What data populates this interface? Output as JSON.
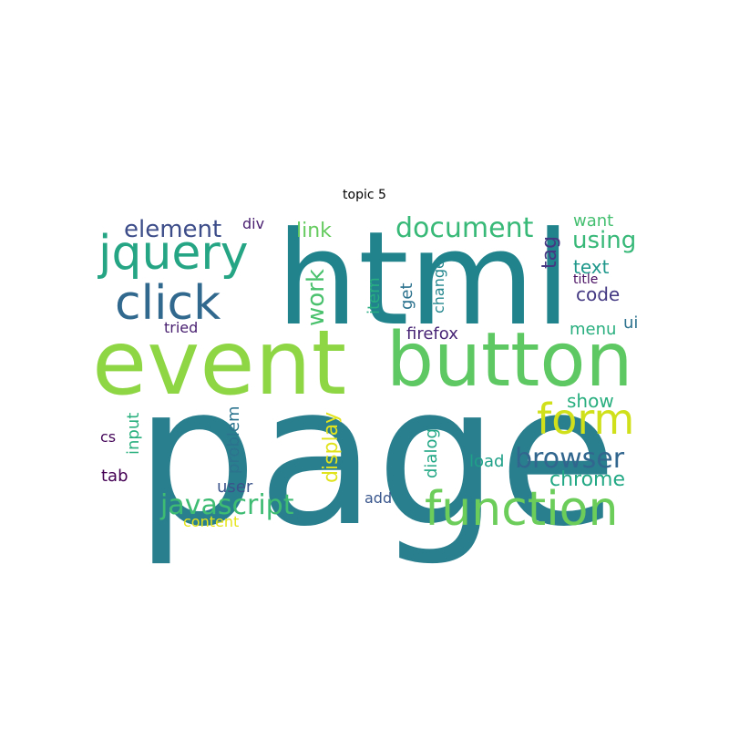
{
  "title": "topic 5",
  "words": [
    {
      "text": "page",
      "color": "#2a7f8e"
    },
    {
      "text": "html",
      "color": "#21848d"
    },
    {
      "text": "event",
      "color": "#8fd644"
    },
    {
      "text": "button",
      "color": "#5ec962"
    },
    {
      "text": "function",
      "color": "#6ccd5a"
    },
    {
      "text": "form",
      "color": "#d0e11c"
    },
    {
      "text": "jquery",
      "color": "#26a585"
    },
    {
      "text": "click",
      "color": "#31688e"
    },
    {
      "text": "javascript",
      "color": "#3fbc73"
    },
    {
      "text": "browser",
      "color": "#31668e"
    },
    {
      "text": "document",
      "color": "#38b977"
    },
    {
      "text": "element",
      "color": "#3d4d8a"
    },
    {
      "text": "using",
      "color": "#37b878"
    },
    {
      "text": "chrome",
      "color": "#22a884"
    },
    {
      "text": "work",
      "color": "#4ac16d"
    },
    {
      "text": "display",
      "color": "#e1e31d"
    },
    {
      "text": "code",
      "color": "#443983"
    },
    {
      "text": "link",
      "color": "#65cb5e"
    },
    {
      "text": "want",
      "color": "#44bf70"
    },
    {
      "text": "text",
      "color": "#1f988b"
    },
    {
      "text": "tag",
      "color": "#453781"
    },
    {
      "text": "show",
      "color": "#29af7f"
    },
    {
      "text": "firefox",
      "color": "#482576"
    },
    {
      "text": "problem",
      "color": "#2c738e"
    },
    {
      "text": "load",
      "color": "#1fa088"
    },
    {
      "text": "menu",
      "color": "#29af7f"
    },
    {
      "text": "input",
      "color": "#2ab07f"
    },
    {
      "text": "dialog",
      "color": "#22a785"
    },
    {
      "text": "item",
      "color": "#27ad81"
    },
    {
      "text": "get",
      "color": "#2c728e"
    },
    {
      "text": "change",
      "color": "#24878e"
    },
    {
      "text": "user",
      "color": "#3a538b"
    },
    {
      "text": "add",
      "color": "#39568c"
    },
    {
      "text": "tab",
      "color": "#440154"
    },
    {
      "text": "content",
      "color": "#e5e419"
    },
    {
      "text": "div",
      "color": "#481d6f"
    },
    {
      "text": "ui",
      "color": "#2c728e"
    },
    {
      "text": "tried",
      "color": "#481f70"
    },
    {
      "text": "cs",
      "color": "#46075a"
    },
    {
      "text": "title",
      "color": "#470d60"
    }
  ]
}
